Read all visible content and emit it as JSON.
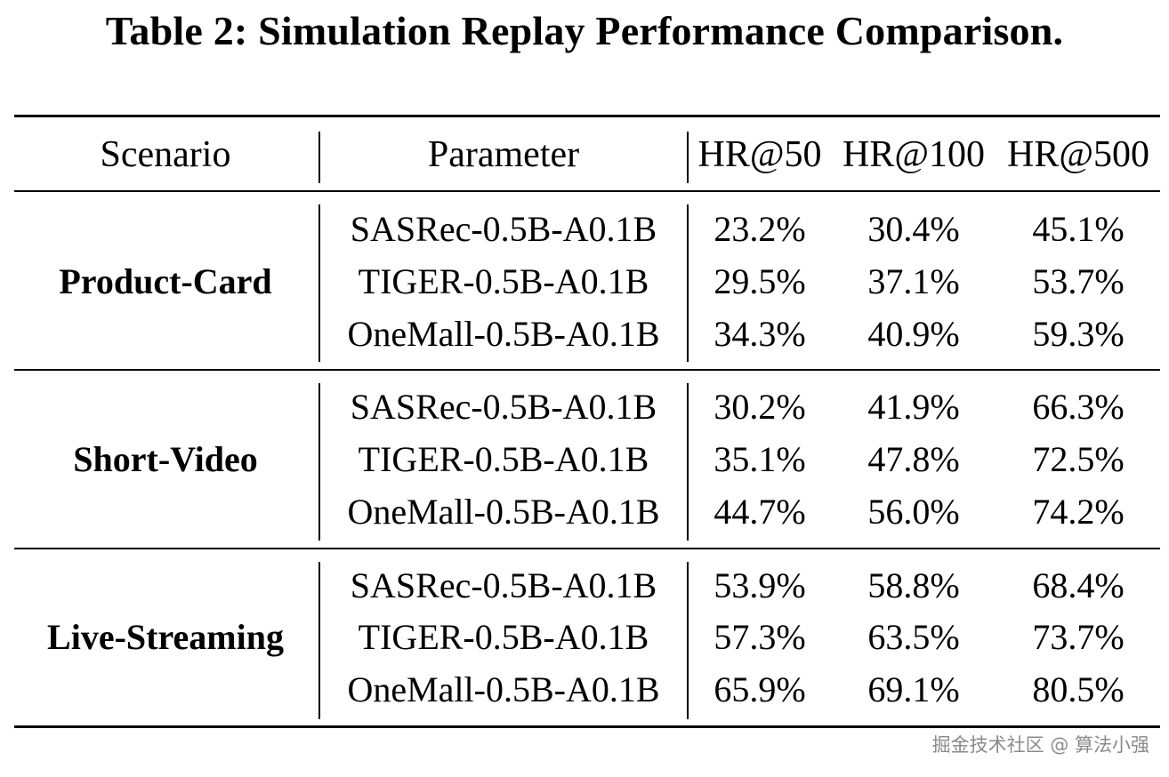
{
  "title": "Table 2: Simulation Replay Performance Comparison.",
  "chart_data": {
    "type": "table",
    "title": "Table 2: Simulation Replay Performance Comparison.",
    "columns": [
      "Scenario",
      "Parameter",
      "HR@50",
      "HR@100",
      "HR@500"
    ],
    "groups": [
      {
        "scenario": "Product-Card",
        "rows": [
          {
            "parameter": "SASRec-0.5B-A0.1B",
            "hr50": "23.2%",
            "hr100": "30.4%",
            "hr500": "45.1%"
          },
          {
            "parameter": "TIGER-0.5B-A0.1B",
            "hr50": "29.5%",
            "hr100": "37.1%",
            "hr500": "53.7%"
          },
          {
            "parameter": "OneMall-0.5B-A0.1B",
            "hr50": "34.3%",
            "hr100": "40.9%",
            "hr500": "59.3%"
          }
        ]
      },
      {
        "scenario": "Short-Video",
        "rows": [
          {
            "parameter": "SASRec-0.5B-A0.1B",
            "hr50": "30.2%",
            "hr100": "41.9%",
            "hr500": "66.3%"
          },
          {
            "parameter": "TIGER-0.5B-A0.1B",
            "hr50": "35.1%",
            "hr100": "47.8%",
            "hr500": "72.5%"
          },
          {
            "parameter": "OneMall-0.5B-A0.1B",
            "hr50": "44.7%",
            "hr100": "56.0%",
            "hr500": "74.2%"
          }
        ]
      },
      {
        "scenario": "Live-Streaming",
        "rows": [
          {
            "parameter": "SASRec-0.5B-A0.1B",
            "hr50": "53.9%",
            "hr100": "58.8%",
            "hr500": "68.4%"
          },
          {
            "parameter": "TIGER-0.5B-A0.1B",
            "hr50": "57.3%",
            "hr100": "63.5%",
            "hr500": "73.7%"
          },
          {
            "parameter": "OneMall-0.5B-A0.1B",
            "hr50": "65.9%",
            "hr100": "69.1%",
            "hr500": "80.5%"
          }
        ]
      }
    ]
  },
  "watermark": "掘金技术社区 @ 算法小强"
}
